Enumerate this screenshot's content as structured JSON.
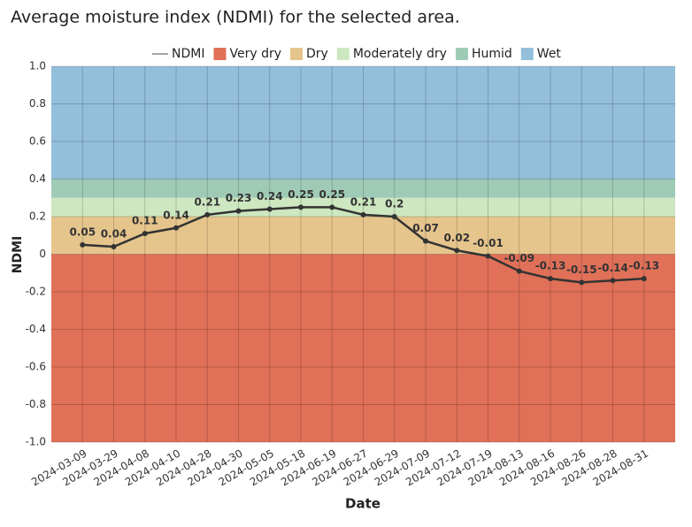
{
  "chart_data": {
    "type": "line",
    "title": "Average moisture index (NDMI) for the selected area.",
    "x_label": "Date",
    "y_label": "NDMI",
    "categories": [
      "2024-03-09",
      "2024-03-29",
      "2024-04-08",
      "2024-04-10",
      "2024-04-28",
      "2024-04-30",
      "2024-05-05",
      "2024-05-18",
      "2024-06-19",
      "2024-06-27",
      "2024-06-29",
      "2024-07-09",
      "2024-07-12",
      "2024-07-19",
      "2024-08-13",
      "2024-08-16",
      "2024-08-26",
      "2024-08-28",
      "2024-08-31"
    ],
    "series": [
      {
        "name": "NDMI",
        "color": "#333333",
        "values": [
          0.05,
          0.04,
          0.11,
          0.14,
          0.21,
          0.23,
          0.24,
          0.25,
          0.25,
          0.21,
          0.2,
          0.07,
          0.02,
          -0.01,
          -0.09,
          -0.13,
          -0.15,
          -0.14,
          -0.13
        ]
      }
    ],
    "bands": [
      {
        "name": "Very dry",
        "color": "#e07058",
        "range": [
          -1,
          0
        ]
      },
      {
        "name": "Dry",
        "color": "#e5c58c",
        "range": [
          0,
          0.2
        ]
      },
      {
        "name": "Moderately dry",
        "color": "#cde7c0",
        "range": [
          0.2,
          0.3
        ]
      },
      {
        "name": "Humid",
        "color": "#9fcbb6",
        "range": [
          0.3,
          0.4
        ]
      },
      {
        "name": "Wet",
        "color": "#93bfdb",
        "range": [
          0.4,
          1
        ]
      }
    ],
    "ylim": [
      -1,
      1
    ],
    "yticks": [
      {
        "value": 1,
        "label": "1.0"
      },
      0.8,
      0.6,
      0.4,
      0.2,
      0,
      -0.2,
      -0.4,
      -0.6,
      -0.8,
      {
        "value": -1,
        "label": "-1.0"
      }
    ],
    "grid": true
  }
}
